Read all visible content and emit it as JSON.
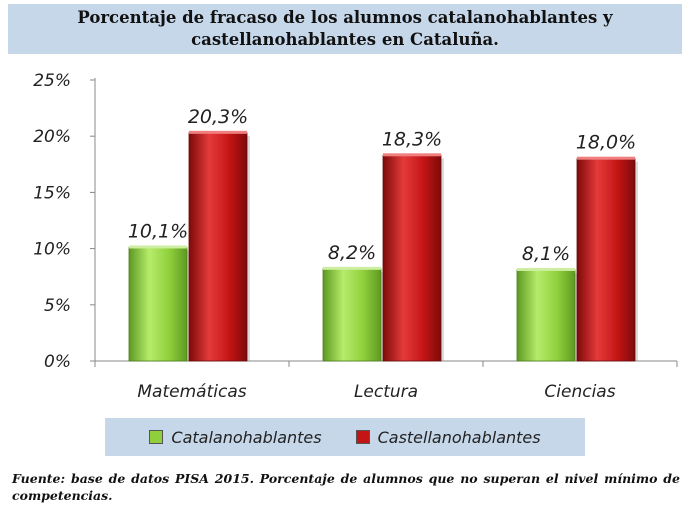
{
  "title": "Porcentaje de fracaso de los alumnos catalanohablantes y castellanohablantes en Cataluña.",
  "footnote": "Fuente: base de datos PISA 2015. Porcentaje de alumnos que no superan el nivel mínimo de competencias.",
  "colors": {
    "catalanohablantes": "#8fcf3c",
    "castellanohablantes": "#c41515",
    "panel": "#c6d7ea"
  },
  "chart_data": {
    "type": "bar",
    "title": "Porcentaje de fracaso de los alumnos catalanohablantes y castellanohablantes en Cataluña.",
    "categories": [
      "Matemáticas",
      "Lectura",
      "Ciencias"
    ],
    "series": [
      {
        "name": "Catalanohablantes",
        "values": [
          10.1,
          8.2,
          8.1
        ],
        "labels": [
          "10,1%",
          "8,2%",
          "8,1%"
        ]
      },
      {
        "name": "Castellanohablantes",
        "values": [
          20.3,
          18.3,
          18.0
        ],
        "labels": [
          "20,3%",
          "18,3%",
          "18,0%"
        ]
      }
    ],
    "ylim": [
      0,
      25
    ],
    "yticks": [
      0,
      5,
      10,
      15,
      20,
      25
    ],
    "ytick_labels": [
      "0%",
      "5%",
      "10%",
      "15%",
      "20%",
      "25%"
    ],
    "xlabel": "",
    "ylabel": "",
    "grid": false,
    "legend_position": "bottom"
  }
}
